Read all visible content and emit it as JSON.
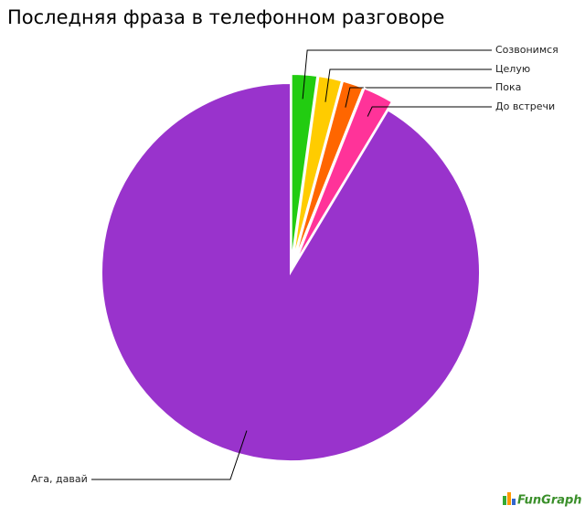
{
  "chart_data": {
    "type": "pie",
    "title": "Последняя фраза в телефонном разговоре",
    "categories": [
      "Созвонимся",
      "Целую",
      "Пока",
      "До встречи",
      "Ага, давай"
    ],
    "values": [
      2.2,
      2.0,
      1.8,
      2.6,
      91.4
    ],
    "colors": [
      "#22cc11",
      "#ffcc00",
      "#ff6600",
      "#ff3399",
      "#9933cc"
    ],
    "watermark": "FunGraph"
  }
}
